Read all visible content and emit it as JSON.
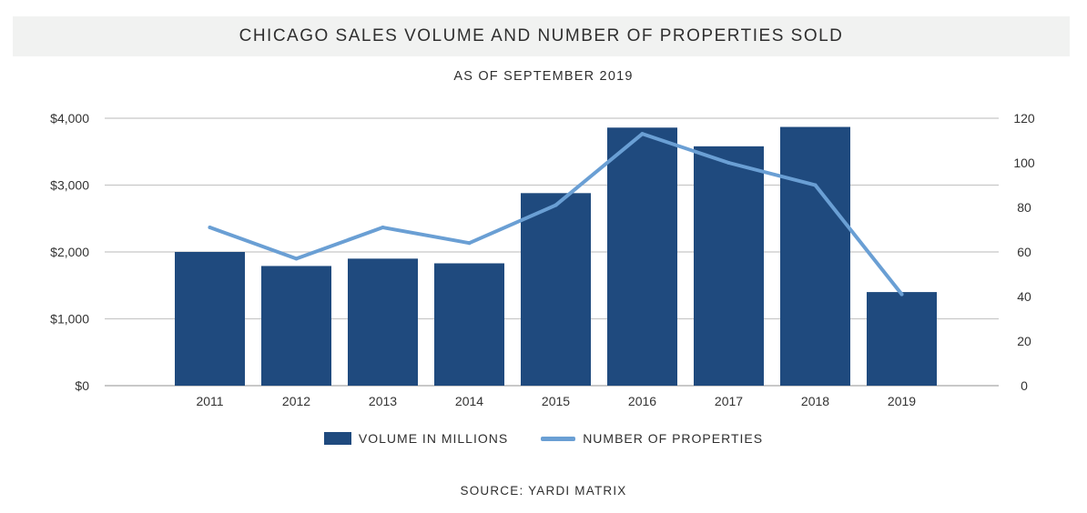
{
  "chart_data": {
    "type": "bar",
    "title": "CHICAGO SALES VOLUME AND NUMBER OF PROPERTIES SOLD",
    "subtitle": "AS OF SEPTEMBER 2019",
    "source": "SOURCE: YARDI MATRIX",
    "categories": [
      "2011",
      "2012",
      "2013",
      "2014",
      "2015",
      "2016",
      "2017",
      "2018",
      "2019"
    ],
    "series": [
      {
        "name": "VOLUME IN MILLIONS",
        "type": "bar",
        "axis": "left",
        "color": "#1f4a7e",
        "values": [
          2000,
          1790,
          1900,
          1830,
          2880,
          3860,
          3580,
          3870,
          1400
        ]
      },
      {
        "name": "NUMBER OF PROPERTIES",
        "type": "line",
        "axis": "right",
        "color": "#6a9fd4",
        "values": [
          71,
          57,
          71,
          64,
          81,
          113,
          100,
          90,
          41
        ]
      }
    ],
    "y_left": {
      "ylim": [
        0,
        4000
      ],
      "ticks": [
        0,
        1000,
        2000,
        3000,
        4000
      ],
      "tick_labels": [
        "$0",
        "$1,000",
        "$2,000",
        "$3,000",
        "$4,000"
      ]
    },
    "y_right": {
      "ylim": [
        0,
        120
      ],
      "ticks": [
        0,
        20,
        40,
        60,
        80,
        100,
        120
      ],
      "tick_labels": [
        "0",
        "20",
        "40",
        "60",
        "80",
        "100",
        "120"
      ]
    },
    "grid": true,
    "legend_position": "bottom"
  }
}
